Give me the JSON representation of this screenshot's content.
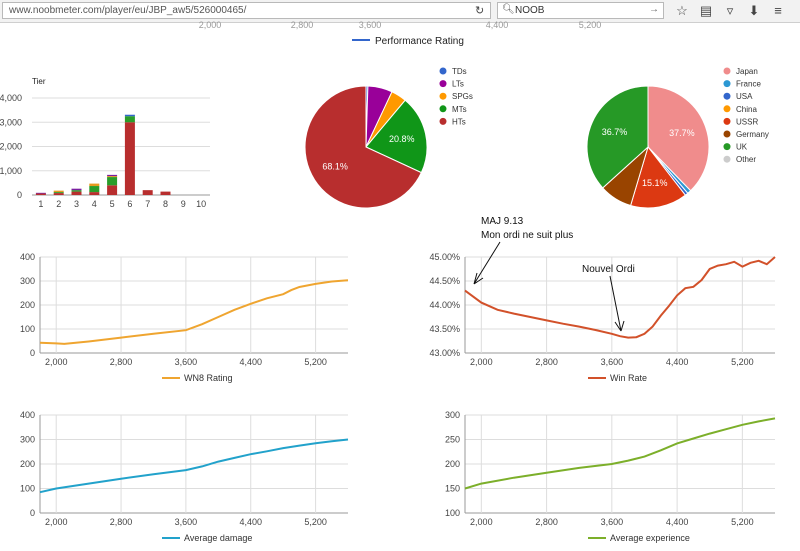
{
  "browser": {
    "url": "www.noobmeter.com/player/eu/JBP_aw5/526000465/",
    "search_value": "NOOB",
    "icons": [
      "reload-icon",
      "search-icon",
      "go-arrow-icon",
      "bookmark-star-icon",
      "reading-list-icon",
      "pocket-icon",
      "download-icon",
      "menu-icon"
    ]
  },
  "top_legend": {
    "label": "Performance Rating",
    "color": "#3366cc"
  },
  "cut_ticks": [
    "2,000",
    "2,800",
    "3,600",
    "4,400",
    "5,200"
  ],
  "annotations": {
    "maj_line1": "MAJ 9.13",
    "maj_line2": "Mon ordi ne suit plus",
    "nouvel": "Nouvel Ordi"
  },
  "chart_data": [
    {
      "type": "bar",
      "id": "tier",
      "title": "Tier",
      "categories": [
        "1",
        "2",
        "3",
        "4",
        "5",
        "6",
        "7",
        "8",
        "9",
        "10"
      ],
      "series": [
        {
          "name": "HTs",
          "color": "#b82e2e",
          "values": [
            60,
            80,
            140,
            120,
            400,
            3000,
            200,
            140,
            0,
            0
          ]
        },
        {
          "name": "MTs",
          "color": "#2a9d2a",
          "values": [
            0,
            40,
            60,
            250,
            340,
            250,
            0,
            0,
            0,
            0
          ]
        },
        {
          "name": "SPGs",
          "color": "#e69a1f",
          "values": [
            0,
            60,
            0,
            100,
            40,
            0,
            0,
            0,
            0,
            0
          ]
        },
        {
          "name": "LTs",
          "color": "#7a1fa0",
          "values": [
            30,
            0,
            60,
            0,
            50,
            0,
            0,
            0,
            0,
            0
          ]
        },
        {
          "name": "TDs",
          "color": "#3366cc",
          "values": [
            0,
            0,
            0,
            0,
            0,
            60,
            0,
            0,
            0,
            0
          ]
        }
      ],
      "ylim": [
        0,
        4000
      ],
      "yticks": [
        "0",
        "1,000",
        "2,000",
        "3,000",
        "4,000"
      ]
    },
    {
      "type": "pie",
      "id": "types",
      "slices": [
        {
          "name": "TDs",
          "value": 0.5,
          "color": "#3366cc",
          "label": ""
        },
        {
          "name": "LTs",
          "value": 6.5,
          "color": "#990099",
          "label": ""
        },
        {
          "name": "SPGs",
          "value": 4.1,
          "color": "#ff9900",
          "label": ""
        },
        {
          "name": "MTs",
          "value": 20.8,
          "color": "#109618",
          "label": "20.8%"
        },
        {
          "name": "HTs",
          "value": 68.1,
          "color": "#b82e2e",
          "label": "68.1%"
        }
      ]
    },
    {
      "type": "pie",
      "id": "nations",
      "slices": [
        {
          "name": "Japan",
          "value": 37.7,
          "color": "#f08c8c",
          "label": "37.7%"
        },
        {
          "name": "France",
          "value": 1.0,
          "color": "#2c98d3",
          "label": ""
        },
        {
          "name": "USA",
          "value": 0.8,
          "color": "#3366cc",
          "label": ""
        },
        {
          "name": "China",
          "value": 0.0,
          "color": "#ff9900",
          "label": ""
        },
        {
          "name": "USSR",
          "value": 15.1,
          "color": "#dc3912",
          "label": "15.1%"
        },
        {
          "name": "Germany",
          "value": 8.7,
          "color": "#994400",
          "label": ""
        },
        {
          "name": "UK",
          "value": 36.7,
          "color": "#269926",
          "label": "36.7%"
        },
        {
          "name": "Other",
          "value": 0.0,
          "color": "#cccccc",
          "label": ""
        }
      ]
    },
    {
      "type": "line",
      "id": "wn8",
      "series_name": "WN8 Rating",
      "color": "#efa530",
      "x": [
        1800,
        2000,
        2100,
        2400,
        2800,
        3200,
        3600,
        3800,
        4000,
        4200,
        4400,
        4600,
        4800,
        4900,
        5000,
        5200,
        5400,
        5600
      ],
      "y": [
        43,
        40,
        38,
        48,
        64,
        80,
        95,
        120,
        150,
        180,
        205,
        228,
        245,
        262,
        275,
        288,
        298,
        303
      ],
      "xlim": [
        1800,
        5600
      ],
      "xticks": [
        2000,
        2800,
        3600,
        4400,
        5200
      ],
      "xtick_labels": [
        "2,000",
        "2,800",
        "3,600",
        "4,400",
        "5,200"
      ],
      "ylim": [
        0,
        400
      ],
      "yticks": [
        "0",
        "100",
        "200",
        "300",
        "400"
      ]
    },
    {
      "type": "line",
      "id": "winrate",
      "series_name": "Win Rate",
      "color": "#d2512a",
      "x": [
        1800,
        2000,
        2200,
        2400,
        2600,
        2800,
        3000,
        3200,
        3400,
        3600,
        3700,
        3800,
        3900,
        4000,
        4100,
        4200,
        4300,
        4400,
        4500,
        4600,
        4700,
        4800,
        4900,
        5000,
        5100,
        5200,
        5300,
        5400,
        5500,
        5600
      ],
      "y": [
        44.3,
        44.05,
        43.9,
        43.82,
        43.75,
        43.68,
        43.61,
        43.55,
        43.48,
        43.4,
        43.35,
        43.32,
        43.33,
        43.4,
        43.55,
        43.78,
        43.98,
        44.2,
        44.35,
        44.38,
        44.52,
        44.75,
        44.82,
        44.85,
        44.9,
        44.8,
        44.88,
        44.92,
        44.85,
        45.0
      ],
      "xlim": [
        1800,
        5600
      ],
      "xticks": [
        2000,
        2800,
        3600,
        4400,
        5200
      ],
      "xtick_labels": [
        "2,000",
        "2,800",
        "3,600",
        "4,400",
        "5,200"
      ],
      "ylim": [
        43.0,
        45.0
      ],
      "yticks": [
        "43.00%",
        "43.50%",
        "44.00%",
        "44.50%",
        "45.00%"
      ]
    },
    {
      "type": "line",
      "id": "damage",
      "series_name": "Average damage",
      "color": "#22a2cb",
      "x": [
        1800,
        2000,
        2400,
        2800,
        3200,
        3600,
        3800,
        4000,
        4200,
        4400,
        4600,
        4800,
        5000,
        5200,
        5400,
        5600
      ],
      "y": [
        85,
        100,
        120,
        140,
        158,
        175,
        190,
        210,
        225,
        240,
        252,
        265,
        275,
        285,
        293,
        300
      ],
      "xlim": [
        1800,
        5600
      ],
      "xticks": [
        2000,
        2800,
        3600,
        4400,
        5200
      ],
      "xtick_labels": [
        "2,000",
        "2,800",
        "3,600",
        "4,400",
        "5,200"
      ],
      "ylim": [
        0,
        400
      ],
      "yticks": [
        "0",
        "100",
        "200",
        "300",
        "400"
      ]
    },
    {
      "type": "line",
      "id": "experience",
      "series_name": "Average experience",
      "color": "#7caf2a",
      "x": [
        1800,
        2000,
        2400,
        2800,
        3200,
        3600,
        3800,
        4000,
        4200,
        4400,
        4600,
        4800,
        5000,
        5200,
        5400,
        5600
      ],
      "y": [
        150,
        160,
        172,
        182,
        192,
        200,
        207,
        215,
        228,
        242,
        252,
        262,
        271,
        280,
        287,
        293
      ],
      "xlim": [
        1800,
        5600
      ],
      "xticks": [
        2000,
        2800,
        3600,
        4400,
        5200
      ],
      "xtick_labels": [
        "2,000",
        "2,800",
        "3,600",
        "4,400",
        "5,200"
      ],
      "ylim": [
        100,
        300
      ],
      "yticks": [
        "100",
        "150",
        "200",
        "250",
        "300"
      ]
    }
  ]
}
